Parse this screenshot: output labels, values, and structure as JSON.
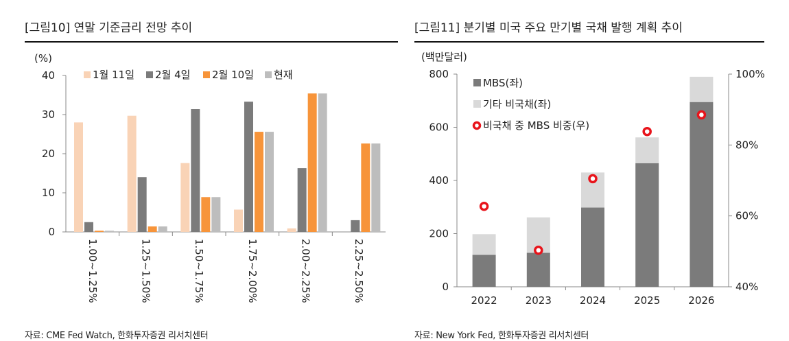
{
  "fig10": {
    "title": "[그림10]  연말 기준금리 전망 추이",
    "source": "자료: CME Fed Watch, 한화투자증권 리서치센터"
  },
  "fig11": {
    "title": "[그림11]  분기별 미국 주요 만기별 국채 발행 계획 추이",
    "source": "자료: New York Fed, 한화투자증권 리서치센터"
  },
  "chart_data": [
    {
      "type": "bar",
      "ylabel": "(%)",
      "ylim": [
        0,
        40
      ],
      "yticks": [
        0,
        10,
        20,
        30,
        40
      ],
      "categories": [
        "1.00~1.25%",
        "1.25~1.50%",
        "1.50~1.75%",
        "1.75~2.00%",
        "2.00~2.25%",
        "2.25~2.50%"
      ],
      "legend_position": "top",
      "series": [
        {
          "name": "1월 11일",
          "color": "#f9d3b6",
          "values": [
            28.0,
            29.7,
            17.6,
            5.7,
            0.9,
            0.0
          ]
        },
        {
          "name": "2월 4일",
          "color": "#7b7b7b",
          "values": [
            2.5,
            14.0,
            31.4,
            33.3,
            16.3,
            3.0
          ]
        },
        {
          "name": "2월 10일",
          "color": "#f7943a",
          "values": [
            0.3,
            1.4,
            8.9,
            25.6,
            35.4,
            22.6
          ]
        },
        {
          "name": "현재",
          "color": "#bdbdbd",
          "values": [
            0.3,
            1.4,
            8.9,
            25.6,
            35.4,
            22.6
          ]
        }
      ]
    },
    {
      "type": "bar",
      "stacked": true,
      "ylabel": "(백만달러)",
      "ylim": [
        0,
        800
      ],
      "yticks": [
        0,
        200,
        400,
        600,
        800
      ],
      "y2lim": [
        40,
        100
      ],
      "y2ticks": [
        "40%",
        "60%",
        "80%",
        "100%"
      ],
      "y2tick_values": [
        40,
        60,
        80,
        100
      ],
      "categories": [
        "2022",
        "2023",
        "2024",
        "2025",
        "2026"
      ],
      "legend_position": "top-left",
      "series": [
        {
          "name": "MBS(좌)",
          "color": "#7b7b7b",
          "values": [
            120,
            128,
            298,
            465,
            695
          ]
        },
        {
          "name": "기타 비국채(좌)",
          "color": "#d9d9d9",
          "values": [
            78,
            133,
            132,
            97,
            95
          ]
        },
        {
          "name": "비국채 중 MBS 비중(우)",
          "color": "#e8141b",
          "marker": "ring",
          "axis": "right",
          "values": [
            62.7,
            50.3,
            70.5,
            83.8,
            88.5
          ]
        }
      ]
    }
  ]
}
